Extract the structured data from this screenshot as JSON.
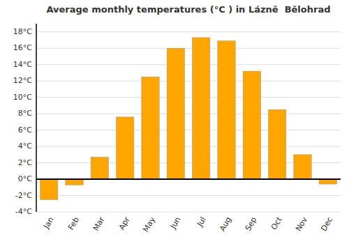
{
  "chart_data": {
    "type": "bar",
    "title": "Average monthly temperatures (°C ) in Lázně  Bělohrad",
    "categories": [
      "Jan",
      "Feb",
      "Mar",
      "Apr",
      "May",
      "Jun",
      "Jul",
      "Aug",
      "Sep",
      "Oct",
      "Nov",
      "Dec"
    ],
    "values": [
      -2.5,
      -0.7,
      2.7,
      7.6,
      12.5,
      16.0,
      17.3,
      16.9,
      13.2,
      8.5,
      3.0,
      -0.6
    ],
    "color": "#FFA500",
    "ylim": [
      -4,
      19
    ],
    "yticks": [
      {
        "value": -4,
        "label": "-4°C"
      },
      {
        "value": -2,
        "label": "-2°C"
      },
      {
        "value": 0,
        "label": "0°C"
      },
      {
        "value": 2,
        "label": "2°C"
      },
      {
        "value": 4,
        "label": "4°C"
      },
      {
        "value": 6,
        "label": "6°C"
      },
      {
        "value": 8,
        "label": "8°C"
      },
      {
        "value": 10,
        "label": "10°C"
      },
      {
        "value": 12,
        "label": "12°C"
      },
      {
        "value": 14,
        "label": "14°C"
      },
      {
        "value": 16,
        "label": "16°C"
      },
      {
        "value": 18,
        "label": "18°C"
      }
    ],
    "grid": true
  }
}
